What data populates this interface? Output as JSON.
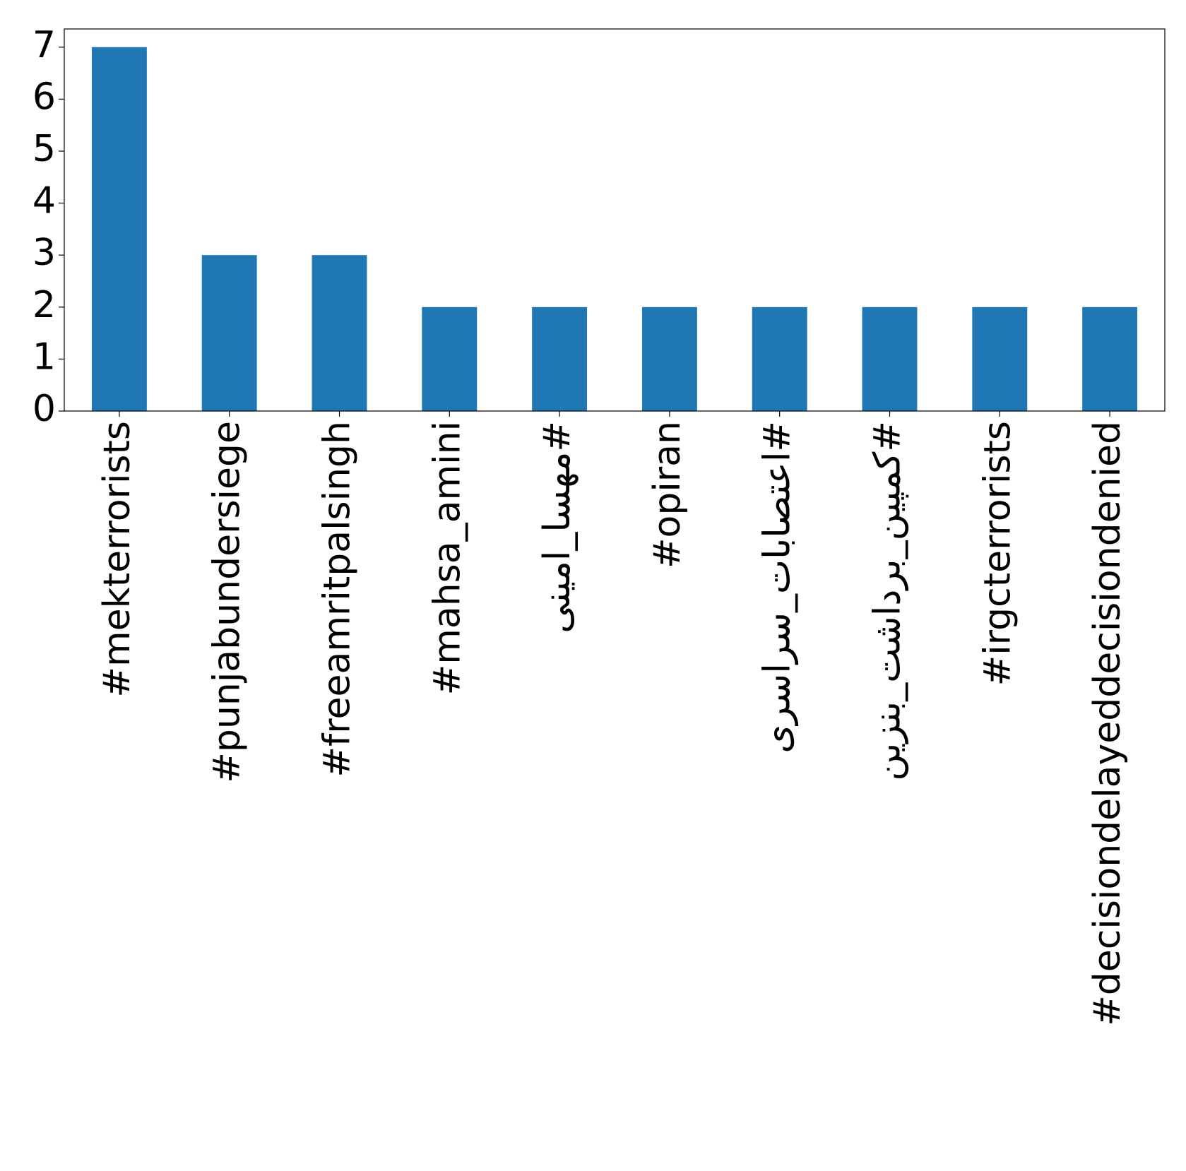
{
  "chart_data": {
    "type": "bar",
    "categories": [
      "#mekterrorists",
      "#punjabundersiege",
      "#freeamritpalsingh",
      "#mahsa_amini",
      "#مهسا_امینی",
      "#opiran",
      "#اعتصابات_سراسری",
      "#کمپین_برداشت_بنزین",
      "#irgcterrorists",
      "#decisiondelayeddecisiondenied"
    ],
    "values": [
      7,
      3,
      3,
      2,
      2,
      2,
      2,
      2,
      2,
      2
    ],
    "color": "#1f77b4",
    "ylim": [
      0,
      7.35
    ],
    "yticks": [
      0,
      1,
      2,
      3,
      4,
      5,
      6,
      7
    ],
    "grid": false
  }
}
